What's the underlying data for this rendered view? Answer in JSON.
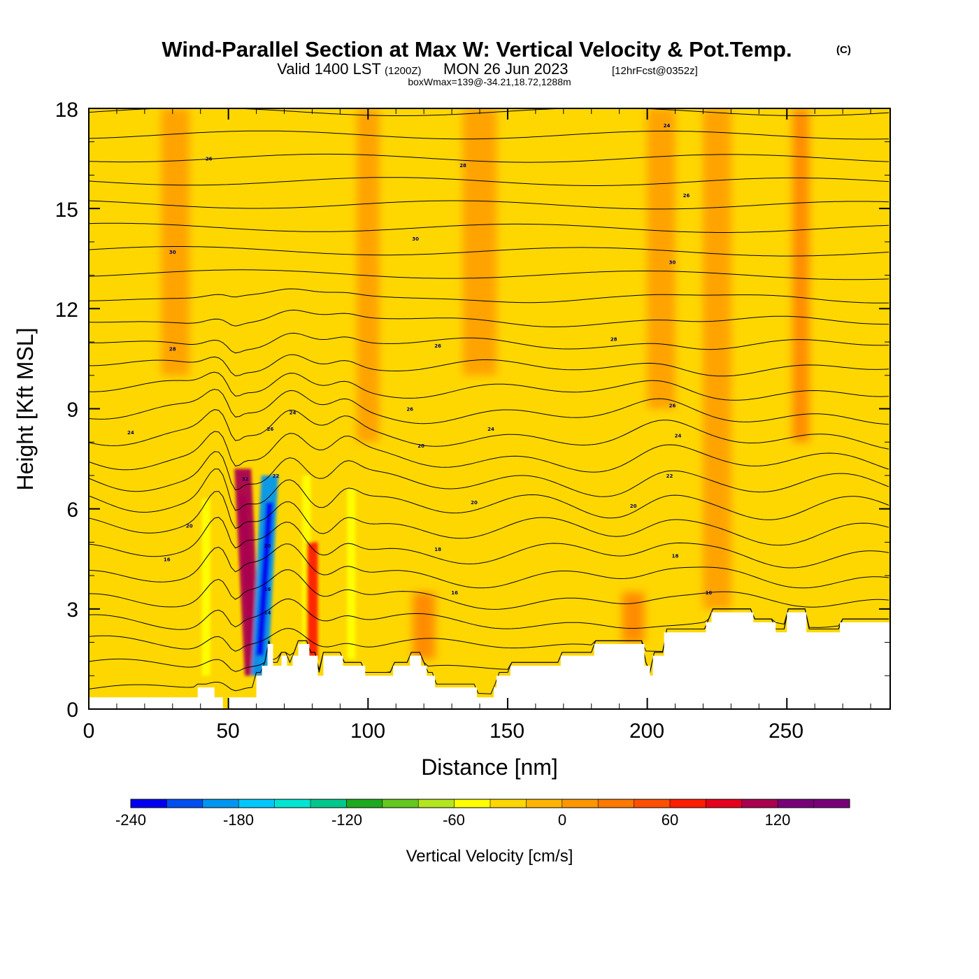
{
  "title": {
    "main": "Wind-Parallel Section at Max W: Vertical Velocity & Pot.Temp.",
    "copyright": "(C)",
    "valid_prefix": "Valid 1400 LST",
    "utc": "(1200Z)",
    "date": "MON 26 Jun 2023",
    "fcst": "[12hrFcst@0352z]",
    "box": "boxWmax=139@-34.21,18.72,1288m"
  },
  "chart_data": {
    "type": "heatmap",
    "xlabel": "Distance [nm]",
    "ylabel": "Height [Kft MSL]",
    "xlim": [
      0,
      287
    ],
    "ylim": [
      0,
      18
    ],
    "xticks": [
      "0",
      "50",
      "100",
      "150",
      "200",
      "250"
    ],
    "yticks": [
      "0",
      "3",
      "6",
      "9",
      "12",
      "15",
      "18"
    ],
    "colorbar": {
      "title": "Vertical Velocity [cm/s]",
      "levels": [
        -240,
        -220,
        -200,
        -180,
        -160,
        -140,
        -120,
        -100,
        -80,
        -60,
        -40,
        -20,
        0,
        20,
        40,
        60,
        80,
        100,
        120,
        140,
        160
      ],
      "tick_labels": [
        "-240",
        "-180",
        "-120",
        "-60",
        "0",
        "60",
        "120"
      ],
      "colors": [
        "#0000f0",
        "#0050f0",
        "#0096f0",
        "#00c8ff",
        "#00e6d2",
        "#00c88c",
        "#1eaa1e",
        "#64c81e",
        "#b4e61e",
        "#ffff00",
        "#ffd700",
        "#ffb400",
        "#ff9600",
        "#ff7800",
        "#ff5000",
        "#ff1e00",
        "#e6001e",
        "#aa0050",
        "#780078",
        "#780078"
      ]
    },
    "background_fill": "#ffd700",
    "terrain_fill": "#ffffff",
    "terrain_profile": {
      "x": [
        0,
        39,
        39,
        45,
        45,
        48,
        48,
        50,
        50,
        60,
        60,
        62,
        62,
        64,
        64,
        66,
        66,
        69,
        69,
        71,
        71,
        73,
        73,
        75,
        75,
        79,
        79,
        82,
        82,
        84,
        84,
        91,
        91,
        99,
        99,
        102,
        102,
        109,
        109,
        115,
        115,
        119,
        119,
        121,
        121,
        124,
        124,
        126,
        126,
        139,
        139,
        145,
        145,
        146,
        146,
        151,
        151,
        169,
        169,
        181,
        181,
        199,
        199,
        201,
        201,
        202,
        202,
        206,
        206,
        221,
        221,
        223,
        223,
        238,
        238,
        246,
        246,
        250,
        250,
        257,
        257,
        269,
        269,
        275,
        275,
        287
      ],
      "y": [
        0.35,
        0.35,
        0.65,
        0.65,
        0.35,
        0.35,
        0.0,
        0.0,
        0.35,
        0.35,
        1.0,
        1.0,
        1.3,
        1.3,
        1.95,
        1.95,
        1.3,
        1.3,
        1.6,
        1.6,
        1.3,
        1.3,
        1.6,
        1.6,
        1.95,
        1.95,
        1.6,
        1.6,
        1.0,
        1.0,
        1.6,
        1.6,
        1.3,
        1.3,
        1.0,
        1.0,
        1.0,
        1.0,
        1.3,
        1.3,
        1.6,
        1.6,
        1.3,
        1.3,
        1.0,
        1.0,
        0.65,
        0.65,
        0.65,
        0.65,
        0.35,
        0.35,
        0.65,
        0.65,
        1.0,
        1.0,
        1.3,
        1.3,
        1.6,
        1.6,
        1.95,
        1.95,
        1.3,
        1.3,
        1.0,
        1.0,
        1.6,
        1.6,
        2.3,
        2.3,
        2.6,
        2.6,
        2.9,
        2.9,
        2.6,
        2.6,
        2.3,
        2.3,
        2.9,
        2.9,
        2.3,
        2.3,
        2.6,
        2.6,
        2.6,
        2.6
      ]
    },
    "w_features": [
      {
        "x": 57,
        "y0": 1.0,
        "y1": 7.2,
        "slope": 0.6,
        "half_width": 3,
        "value": 100
      },
      {
        "x": 63,
        "y0": 1.0,
        "y1": 7.0,
        "slope": -0.6,
        "half_width": 3,
        "value": -200
      },
      {
        "x": 42,
        "y0": 1.0,
        "y1": 6.3,
        "slope": 0.0,
        "half_width": 1.5,
        "value": -60
      },
      {
        "x": 78,
        "y0": 1.5,
        "y1": 7.0,
        "slope": 0.0,
        "half_width": 1.5,
        "value": -60
      },
      {
        "x": 80,
        "y0": 1.5,
        "y1": 5.0,
        "slope": 0.0,
        "half_width": 2,
        "value": 60
      },
      {
        "x": 94,
        "y0": 1.5,
        "y1": 6.6,
        "slope": 0.0,
        "half_width": 1.5,
        "value": -60
      },
      {
        "x": 31,
        "y0": 10.0,
        "y1": 18.0,
        "slope": 0.0,
        "half_width": 5,
        "value": 20
      },
      {
        "x": 100,
        "y0": 8.0,
        "y1": 18.0,
        "slope": 0.0,
        "half_width": 4,
        "value": 20
      },
      {
        "x": 140,
        "y0": 10.0,
        "y1": 18.0,
        "slope": 0.0,
        "half_width": 6,
        "value": 20
      },
      {
        "x": 205,
        "y0": 9.0,
        "y1": 18.0,
        "slope": 0.0,
        "half_width": 5,
        "value": 20
      },
      {
        "x": 225,
        "y0": 3.0,
        "y1": 18.0,
        "slope": 0.0,
        "half_width": 5,
        "value": 20
      },
      {
        "x": 255,
        "y0": 8.0,
        "y1": 18.0,
        "slope": 0.0,
        "half_width": 3,
        "value": 40
      },
      {
        "x": 120,
        "y0": 1.5,
        "y1": 3.5,
        "slope": 0.0,
        "half_width": 4,
        "value": 40
      },
      {
        "x": 195,
        "y0": 2.0,
        "y1": 3.5,
        "slope": 0.0,
        "half_width": 4,
        "value": 40
      }
    ],
    "isentropes": {
      "count": 26,
      "base_height": 0.6,
      "top_height": 17.9,
      "labels": [
        {
          "x": 15,
          "y": 8.3,
          "text": "24"
        },
        {
          "x": 28,
          "y": 4.5,
          "text": "16"
        },
        {
          "x": 36,
          "y": 5.5,
          "text": "20"
        },
        {
          "x": 30,
          "y": 13.7,
          "text": "30"
        },
        {
          "x": 30,
          "y": 10.8,
          "text": "28"
        },
        {
          "x": 43,
          "y": 16.5,
          "text": "26"
        },
        {
          "x": 56,
          "y": 6.9,
          "text": "32"
        },
        {
          "x": 65,
          "y": 8.4,
          "text": "26"
        },
        {
          "x": 73,
          "y": 8.9,
          "text": "24"
        },
        {
          "x": 67,
          "y": 7.0,
          "text": "22"
        },
        {
          "x": 64,
          "y": 4.9,
          "text": "20"
        },
        {
          "x": 64,
          "y": 3.6,
          "text": "16"
        },
        {
          "x": 64,
          "y": 2.9,
          "text": "14"
        },
        {
          "x": 115,
          "y": 9.0,
          "text": "26"
        },
        {
          "x": 119,
          "y": 7.9,
          "text": "20"
        },
        {
          "x": 125,
          "y": 10.9,
          "text": "26"
        },
        {
          "x": 117,
          "y": 14.1,
          "text": "30"
        },
        {
          "x": 134,
          "y": 16.3,
          "text": "28"
        },
        {
          "x": 138,
          "y": 6.2,
          "text": "20"
        },
        {
          "x": 144,
          "y": 8.4,
          "text": "24"
        },
        {
          "x": 125,
          "y": 4.8,
          "text": "18"
        },
        {
          "x": 131,
          "y": 3.5,
          "text": "16"
        },
        {
          "x": 188,
          "y": 11.1,
          "text": "28"
        },
        {
          "x": 195,
          "y": 6.1,
          "text": "20"
        },
        {
          "x": 207,
          "y": 17.5,
          "text": "24"
        },
        {
          "x": 209,
          "y": 9.1,
          "text": "26"
        },
        {
          "x": 211,
          "y": 8.2,
          "text": "24"
        },
        {
          "x": 208,
          "y": 7.0,
          "text": "22"
        },
        {
          "x": 210,
          "y": 4.6,
          "text": "18"
        },
        {
          "x": 209,
          "y": 13.4,
          "text": "30"
        },
        {
          "x": 214,
          "y": 15.4,
          "text": "26"
        },
        {
          "x": 222,
          "y": 3.5,
          "text": "16"
        }
      ]
    }
  }
}
